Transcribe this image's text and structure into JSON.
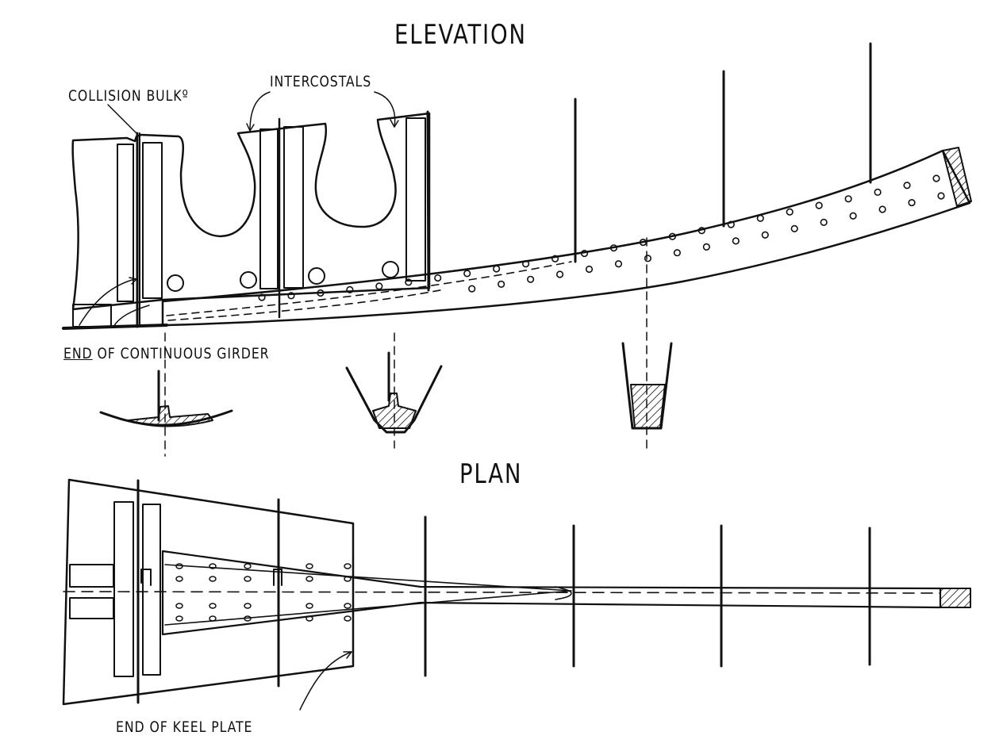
{
  "titles": {
    "elevation": "ELEVATION",
    "plan": "PLAN"
  },
  "labels": {
    "collision_bulkhead": "COLLISION BULKº",
    "intercostals": "INTERCOSTALS",
    "end_of_continuous_girder_prefix": "END",
    "end_of_continuous_girder_rest": " OF CONTINUOUS GIRDER",
    "end_of_keel_plate": "END OF KEEL PLATE"
  }
}
